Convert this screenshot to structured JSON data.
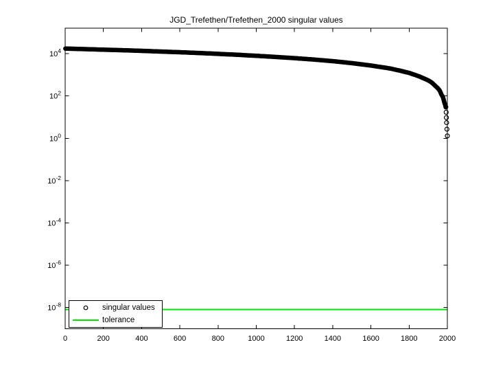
{
  "figure": {
    "background": "#ffffff",
    "axes_color": "#000000"
  },
  "chart_data": {
    "type": "scatter",
    "title": "JGD_Trefethen/Trefethen_2000 singular values",
    "xlabel": "",
    "ylabel": "",
    "grid": false,
    "y_scale": "log",
    "xlim": [
      0,
      2000
    ],
    "ylim": [
      1e-09,
      160000.0
    ],
    "x_ticks": [
      0,
      200,
      400,
      600,
      800,
      1000,
      1200,
      1400,
      1600,
      1800,
      2000
    ],
    "y_tick_exponents": [
      4,
      2,
      0,
      -2,
      -4,
      -6,
      -8
    ],
    "y_tick_base": "10",
    "legend": {
      "position": "south-west",
      "entries": [
        {
          "label": "singular values",
          "marker": "circle",
          "color": "#000000"
        },
        {
          "label": "tolerance",
          "marker": "line",
          "color": "#00E400"
        }
      ]
    },
    "series": [
      {
        "name": "singular values",
        "type": "scatter",
        "marker": "o",
        "color": "#000000",
        "points_total": 2000,
        "value_range": [
          1.3,
          17389
        ],
        "points": [
          [
            1,
            17389
          ],
          [
            100,
            16411
          ],
          [
            200,
            15413
          ],
          [
            300,
            14533
          ],
          [
            400,
            13577
          ],
          [
            500,
            12569
          ],
          [
            600,
            11677
          ],
          [
            700,
            10739
          ],
          [
            800,
            9781
          ],
          [
            900,
            8849
          ],
          [
            1000,
            7919
          ],
          [
            1100,
            7001
          ],
          [
            1200,
            6133
          ],
          [
            1300,
            5281
          ],
          [
            1400,
            4421
          ],
          [
            1500,
            3571
          ],
          [
            1600,
            2749
          ],
          [
            1700,
            1993
          ],
          [
            1750,
            1583
          ],
          [
            1800,
            1229
          ],
          [
            1850,
            863
          ],
          [
            1900,
            547
          ],
          [
            1920,
            419
          ],
          [
            1940,
            283
          ],
          [
            1950,
            233
          ],
          [
            1960,
            179
          ],
          [
            1970,
            113
          ],
          [
            1975,
            97
          ],
          [
            1980,
            71
          ],
          [
            1985,
            47
          ],
          [
            1990,
            36
          ],
          [
            1992,
            30
          ],
          [
            1994,
            17
          ],
          [
            1995,
            9.5
          ],
          [
            1996,
            5.5
          ],
          [
            1998,
            2.7
          ],
          [
            2000,
            1.3
          ]
        ]
      },
      {
        "name": "tolerance",
        "type": "line",
        "color": "#00E400",
        "value": 8e-09
      }
    ]
  }
}
